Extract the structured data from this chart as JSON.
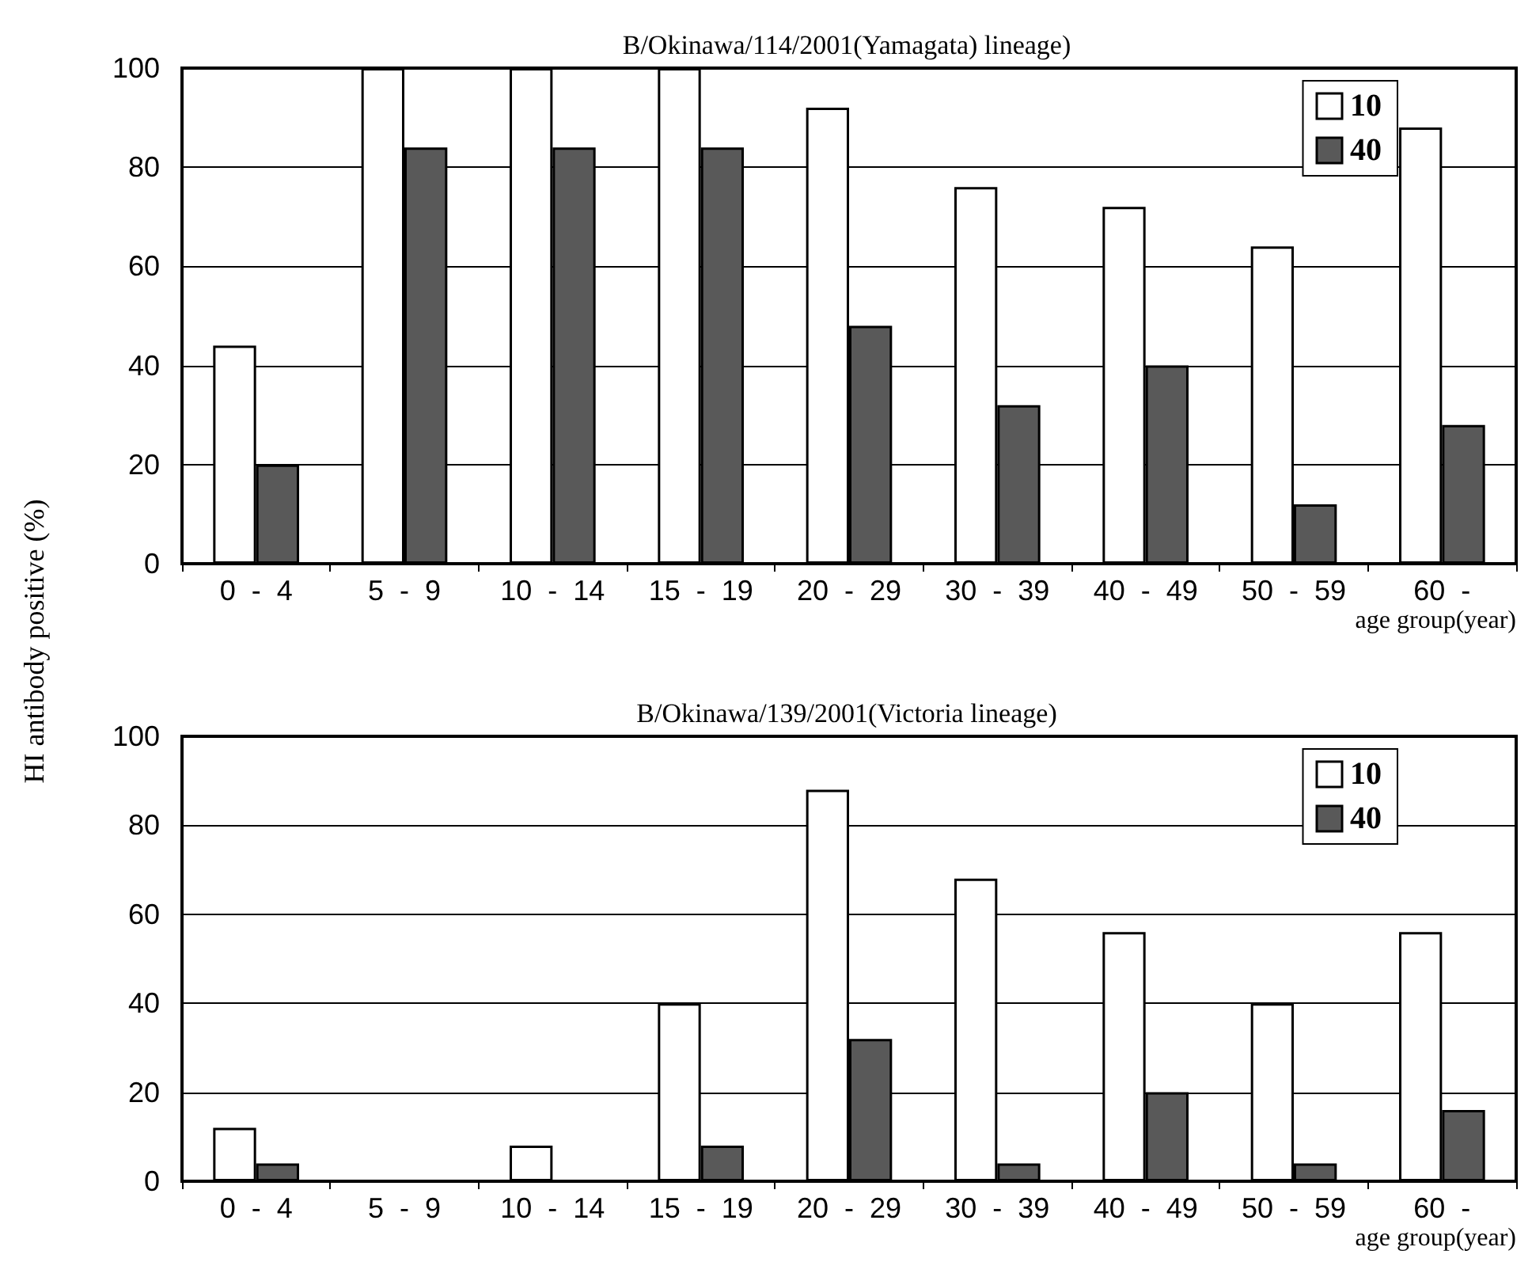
{
  "chart_data": [
    {
      "type": "bar",
      "title": "B/Okinawa/114/2001(Yamagata) lineage)",
      "xlabel": "age group(year)",
      "ylabel": "HI antibody positive (%)",
      "categories": [
        "0  -  4",
        "5  -  9",
        "10  -  14",
        "15  -  19",
        "20  -  29",
        "30  -  39",
        "40  -  49",
        "50  -  59",
        "60  -"
      ],
      "series": [
        {
          "name": "10",
          "color": "#ffffff",
          "values": [
            44,
            100,
            100,
            100,
            92,
            76,
            72,
            64,
            88
          ]
        },
        {
          "name": "40",
          "color": "#595959",
          "values": [
            20,
            84,
            84,
            84,
            48,
            32,
            40,
            12,
            28
          ]
        }
      ],
      "ylim": [
        0,
        100
      ],
      "yticks": [
        0,
        20,
        40,
        60,
        80,
        100
      ],
      "grid": "y",
      "legend": "top right"
    },
    {
      "type": "bar",
      "title": "B/Okinawa/139/2001(Victoria lineage)",
      "xlabel": "age group(year)",
      "categories": [
        "0  -  4",
        "5  -  9",
        "10  -  14",
        "15  -  19",
        "20  -  29",
        "30  -  39",
        "40  -  49",
        "50  -  59",
        "60  -"
      ],
      "series": [
        {
          "name": "10",
          "color": "#ffffff",
          "values": [
            12,
            0,
            8,
            40,
            88,
            68,
            56,
            40,
            56
          ]
        },
        {
          "name": "40",
          "color": "#595959",
          "values": [
            4,
            0,
            0,
            8,
            32,
            4,
            20,
            4,
            16
          ]
        }
      ],
      "ylim": [
        0,
        100
      ],
      "yticks": [
        0,
        20,
        40,
        60,
        80,
        100
      ],
      "grid": "y",
      "legend": "top right"
    }
  ]
}
